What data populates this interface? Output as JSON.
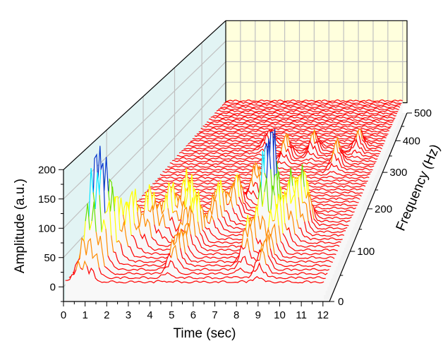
{
  "chart_data": {
    "type": "waterfall",
    "title": "",
    "xlabel": "Time (sec)",
    "ylabel": "Amplitude (a.u.)",
    "zlabel": "Frequency (Hz)",
    "xlim": [
      0,
      12.3
    ],
    "ylim": [
      -25,
      200
    ],
    "zlim": [
      0,
      500
    ],
    "x_ticks": [
      "0",
      "1",
      "2",
      "3",
      "4",
      "5",
      "6",
      "7",
      "8",
      "9",
      "10",
      "11",
      "12"
    ],
    "y_ticks": [
      "0",
      "50",
      "100",
      "150",
      "200"
    ],
    "z_ticks": [
      "0",
      "100",
      "200",
      "300",
      "400",
      "500"
    ],
    "grid": true,
    "frequency_step": 8,
    "time_step": 0.1,
    "colormap": [
      {
        "above": 0,
        "color": "#ff0000"
      },
      {
        "above": 40,
        "color": "#ff8c00"
      },
      {
        "above": 80,
        "color": "#ffff00"
      },
      {
        "above": 120,
        "color": "#66e000"
      },
      {
        "above": 160,
        "color": "#00e5ff"
      },
      {
        "above": 185,
        "color": "#0033cc"
      }
    ],
    "peaks": [
      {
        "time": 0.8,
        "freq": 40,
        "amplitude": 190
      },
      {
        "time": 1.3,
        "freq": 48,
        "amplitude": 140
      },
      {
        "time": 0.6,
        "freq": 20,
        "amplitude": 60
      },
      {
        "time": 1.1,
        "freq": 24,
        "amplitude": 70
      },
      {
        "time": 1.8,
        "freq": 70,
        "amplitude": 120
      },
      {
        "time": 2.4,
        "freq": 90,
        "amplitude": 110
      },
      {
        "time": 3.0,
        "freq": 110,
        "amplitude": 100
      },
      {
        "time": 3.6,
        "freq": 130,
        "amplitude": 110
      },
      {
        "time": 4.2,
        "freq": 100,
        "amplitude": 130
      },
      {
        "time": 4.6,
        "freq": 40,
        "amplitude": 70
      },
      {
        "time": 4.8,
        "freq": 80,
        "amplitude": 110
      },
      {
        "time": 5.3,
        "freq": 120,
        "amplitude": 100
      },
      {
        "time": 5.8,
        "freq": 150,
        "amplitude": 90
      },
      {
        "time": 6.2,
        "freq": 200,
        "amplitude": 70
      },
      {
        "time": 7.9,
        "freq": 50,
        "amplitude": 90
      },
      {
        "time": 8.3,
        "freq": 80,
        "amplitude": 175
      },
      {
        "time": 8.6,
        "freq": 90,
        "amplitude": 150
      },
      {
        "time": 9.0,
        "freq": 70,
        "amplitude": 120
      },
      {
        "time": 9.4,
        "freq": 100,
        "amplitude": 130
      },
      {
        "time": 9.8,
        "freq": 120,
        "amplitude": 110
      },
      {
        "time": 8.9,
        "freq": 30,
        "amplitude": 60
      },
      {
        "time": 6.6,
        "freq": 300,
        "amplitude": 55
      },
      {
        "time": 8.0,
        "freq": 320,
        "amplitude": 50
      },
      {
        "time": 9.8,
        "freq": 280,
        "amplitude": 60
      },
      {
        "time": 10.6,
        "freq": 330,
        "amplitude": 50
      },
      {
        "time": 5.0,
        "freq": 340,
        "amplitude": 40
      }
    ],
    "colors": {
      "back_wall": "#ffffdd",
      "side_wall": "#e2f4f4",
      "floor": "#f3f3f3",
      "fill": "#f8f8f8",
      "grid": "#c0c0c0"
    }
  }
}
